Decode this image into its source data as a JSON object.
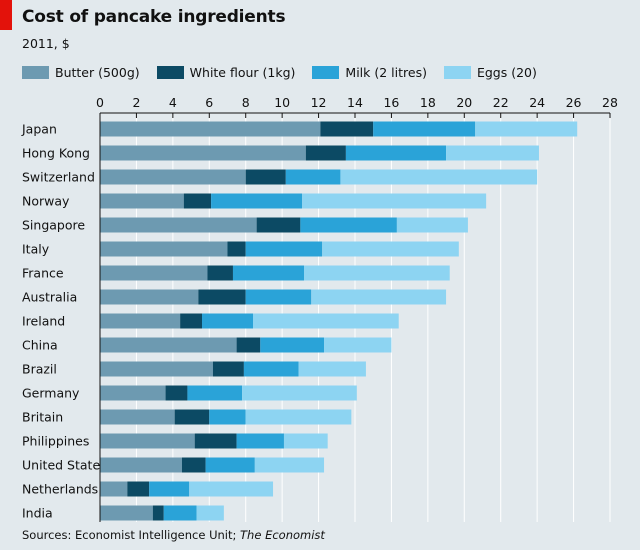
{
  "header": {
    "title": "Cost of pancake ingredients",
    "subtitle": "2011, $"
  },
  "source": {
    "prefix": "Sources: Economist Intelligence Unit; ",
    "italic": "The Economist"
  },
  "colors": {
    "background": "#e2e9ed",
    "accent": "#e3120b",
    "grid": "#ffffff",
    "axis": "#111111"
  },
  "chart_data": {
    "type": "bar",
    "orientation": "horizontal",
    "stacked": true,
    "title": "Cost of pancake ingredients",
    "subtitle": "2011, $",
    "xlim": [
      0,
      28
    ],
    "xticks": [
      0,
      2,
      4,
      6,
      8,
      10,
      12,
      14,
      16,
      18,
      20,
      22,
      24,
      26,
      28
    ],
    "legend_position": "top",
    "grid": true,
    "categories": [
      "Japan",
      "Hong Kong",
      "Switzerland",
      "Norway",
      "Singapore",
      "Italy",
      "France",
      "Australia",
      "Ireland",
      "China",
      "Brazil",
      "Germany",
      "Britain",
      "Philippines",
      "United States",
      "Netherlands",
      "India"
    ],
    "series": [
      {
        "name": "Butter (500g)",
        "color": "#6d9ab1",
        "values": [
          12.1,
          11.3,
          8.0,
          4.6,
          8.6,
          7.0,
          5.9,
          5.4,
          4.4,
          7.5,
          6.2,
          3.6,
          4.1,
          5.2,
          4.5,
          1.5,
          2.9
        ]
      },
      {
        "name": "White flour (1kg)",
        "color": "#0c4a64",
        "values": [
          2.9,
          2.2,
          2.2,
          1.5,
          2.4,
          1.0,
          1.4,
          2.6,
          1.2,
          1.3,
          1.7,
          1.2,
          1.9,
          2.3,
          1.3,
          1.2,
          0.6
        ]
      },
      {
        "name": "Milk (2 litres)",
        "color": "#2aa3d8",
        "values": [
          5.6,
          5.5,
          3.0,
          5.0,
          5.3,
          4.2,
          3.9,
          3.6,
          2.8,
          3.5,
          3.0,
          3.0,
          2.0,
          2.6,
          2.7,
          2.2,
          1.8
        ]
      },
      {
        "name": "Eggs (20)",
        "color": "#8dd4f2",
        "values": [
          5.6,
          5.1,
          10.8,
          10.1,
          3.9,
          7.5,
          8.0,
          7.4,
          8.0,
          3.7,
          3.7,
          6.3,
          5.8,
          2.4,
          3.8,
          4.6,
          1.5
        ]
      }
    ]
  }
}
